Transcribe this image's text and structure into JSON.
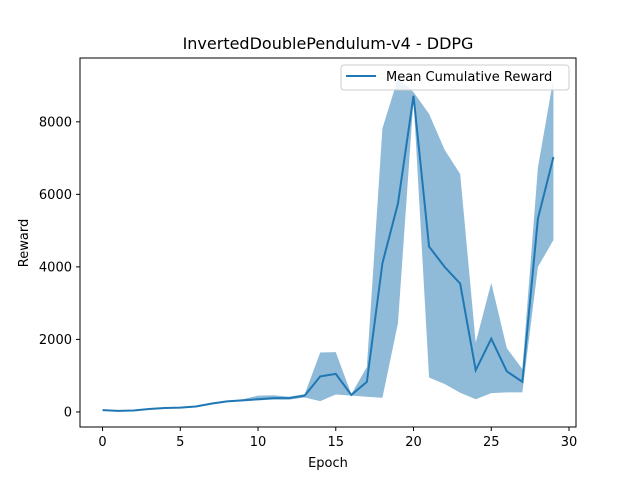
{
  "chart_data": {
    "type": "line",
    "title": "InvertedDoublePendulum-v4 - DDPG",
    "xlabel": "Epoch",
    "ylabel": "Reward",
    "xlim": [
      -1.45,
      30.45
    ],
    "ylim": [
      -415,
      9760
    ],
    "xticks": [
      0,
      5,
      10,
      15,
      20,
      25,
      30
    ],
    "yticks": [
      0,
      2000,
      4000,
      6000,
      8000
    ],
    "grid": false,
    "legend": {
      "placement": "upper right",
      "entries": [
        "Mean Cumulative Reward"
      ]
    },
    "x": [
      0,
      1,
      2,
      3,
      4,
      5,
      6,
      7,
      8,
      9,
      10,
      11,
      12,
      13,
      14,
      15,
      16,
      17,
      18,
      19,
      20,
      21,
      22,
      23,
      24,
      25,
      26,
      27,
      28,
      29
    ],
    "series": [
      {
        "name": "Mean Cumulative Reward",
        "color": "#1f77b4",
        "values": [
          50,
          30,
          40,
          80,
          110,
          120,
          150,
          230,
          290,
          320,
          350,
          380,
          380,
          450,
          980,
          1050,
          470,
          830,
          4100,
          5750,
          8720,
          4560,
          4000,
          3540,
          1150,
          2020,
          1120,
          830,
          5330,
          7030
        ]
      }
    ],
    "band": {
      "color": "#1f77b4",
      "opacity": 0.5,
      "lower": [
        50,
        30,
        40,
        80,
        110,
        120,
        150,
        220,
        270,
        300,
        320,
        340,
        340,
        400,
        300,
        480,
        450,
        420,
        390,
        2450,
        8620,
        950,
        770,
        530,
        350,
        520,
        540,
        540,
        4000,
        4740
      ],
      "upper": [
        50,
        30,
        40,
        80,
        110,
        120,
        160,
        240,
        310,
        350,
        450,
        460,
        420,
        490,
        1640,
        1650,
        490,
        1240,
        7820,
        9200,
        8820,
        8220,
        7230,
        6560,
        1910,
        3560,
        1760,
        1180,
        6740,
        9200
      ]
    }
  }
}
